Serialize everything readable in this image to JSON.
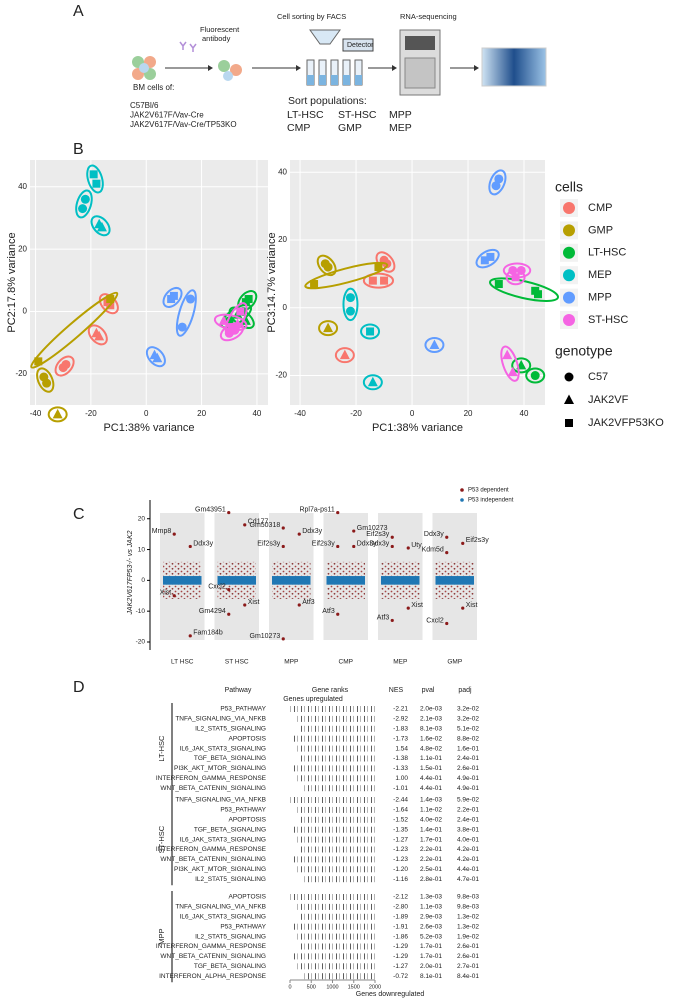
{
  "panel_labels": [
    "A",
    "B",
    "C",
    "D"
  ],
  "workflow": {
    "antibody_label": [
      "Fluorescent",
      "antibody"
    ],
    "sorting": "Cell sorting by FACS",
    "detector": "Detector",
    "sequencing": "RNA-sequencing",
    "bm_title": "BM cells of:",
    "genotypes": [
      "C57Bl/6",
      "JAK2V617F/Vav-Cre",
      "JAK2V617F/Vav-Cre/TP53KO"
    ],
    "sort_title": "Sort populations:",
    "populations": [
      "LT-HSC",
      "ST-HSC",
      "MPP",
      "CMP",
      "GMP",
      "MEP"
    ]
  },
  "chart_data": [
    {
      "type": "scatter",
      "xlabel": "PC1:38% variance",
      "ylabel": "PC2:17.8% variance",
      "xlim": [
        -42,
        44
      ],
      "ylim": [
        -30,
        48.6
      ],
      "xticks": [
        -40,
        -20,
        0,
        20,
        40
      ],
      "yticks": [
        -20,
        0,
        20,
        40
      ],
      "grid": true,
      "series": [
        {
          "color": "#F8766D",
          "x": [
            -30,
            -29,
            -18,
            -17,
            -14,
            -13
          ],
          "y": [
            -18,
            -17,
            -7,
            -8,
            3,
            2
          ],
          "genotype": [
            "C57",
            "C57",
            "JAK2VF",
            "JAK2VF",
            "JAK2VFP53KO",
            "JAK2VFP53KO"
          ]
        },
        {
          "color": "#B79F00",
          "x": [
            -37,
            -36,
            -32,
            -39,
            -13
          ],
          "y": [
            -21,
            -23,
            -33,
            -16,
            4
          ],
          "genotype": [
            "C57",
            "C57",
            "JAK2VF",
            "JAK2VFP53KO",
            "JAK2VFP53KO"
          ]
        },
        {
          "color": "#00BA38",
          "x": [
            30,
            35,
            33,
            36,
            36,
            37
          ],
          "y": [
            -3,
            0,
            -1,
            -3,
            3,
            4
          ],
          "genotype": [
            "C57",
            "C57",
            "JAK2VF",
            "JAK2VF",
            "JAK2VFP53KO",
            "JAK2VFP53KO"
          ]
        },
        {
          "color": "#00BFC4",
          "x": [
            -23,
            -22,
            -19,
            -18,
            -17,
            -16
          ],
          "y": [
            33,
            36,
            44,
            41,
            28,
            27
          ],
          "genotype": [
            "C57",
            "C57",
            "JAK2VFP53KO",
            "JAK2VFP53KO",
            "JAK2VF",
            "JAK2VF"
          ]
        },
        {
          "color": "#619CFF",
          "x": [
            13,
            16,
            9,
            10,
            3,
            4
          ],
          "y": [
            -5,
            4,
            4,
            5,
            -14,
            -15
          ],
          "genotype": [
            "C57",
            "C57",
            "JAK2VFP53KO",
            "JAK2VFP53KO",
            "JAK2VF",
            "JAK2VF"
          ]
        },
        {
          "color": "#F564E3",
          "x": [
            30,
            32,
            28,
            33,
            34,
            31
          ],
          "y": [
            -7,
            -6,
            -3,
            -4,
            0,
            -5
          ],
          "genotype": [
            "C57",
            "C57",
            "JAK2VF",
            "JAK2VF",
            "JAK2VFP53KO",
            "JAK2VFP53KO"
          ]
        }
      ]
    },
    {
      "type": "scatter",
      "xlabel": "PC1:38% variance",
      "ylabel": "PC3:14.7% variance",
      "xlim": [
        -43.6,
        47.5
      ],
      "ylim": [
        -28.7,
        43.6
      ],
      "xticks": [
        -40,
        -20,
        0,
        20,
        40
      ],
      "yticks": [
        -20,
        0,
        20,
        40
      ],
      "grid": true,
      "legend_title": "cells",
      "shape_title": "genotype",
      "shapes": [
        "C57",
        "JAK2VF",
        "JAK2VFP53KO"
      ],
      "series": [
        {
          "name": "CMP",
          "color": "#F8766D",
          "x": [
            -9,
            -10,
            -14,
            -10,
            -24
          ],
          "y": [
            13,
            14,
            8,
            8,
            -14
          ],
          "genotype": [
            "C57",
            "C57",
            "JAK2VFP53KO",
            "JAK2VFP53KO",
            "JAK2VF"
          ]
        },
        {
          "name": "GMP",
          "color": "#B79F00",
          "x": [
            -30,
            -31,
            -35,
            -12,
            -30
          ],
          "y": [
            12,
            13,
            7,
            12,
            -6
          ],
          "genotype": [
            "C57",
            "C57",
            "JAK2VFP53KO",
            "JAK2VFP53KO",
            "JAK2VF"
          ]
        },
        {
          "name": "LT-HSC",
          "color": "#00BA38",
          "x": [
            44,
            45,
            31,
            39,
            44
          ],
          "y": [
            5,
            4,
            7,
            -17,
            -20
          ],
          "genotype": [
            "JAK2VFP53KO",
            "JAK2VFP53KO",
            "JAK2VFP53KO",
            "JAK2VF",
            "C57"
          ]
        },
        {
          "name": "MEP",
          "color": "#00BFC4",
          "x": [
            -22,
            -22,
            -15,
            -14
          ],
          "y": [
            3,
            -1,
            -7,
            -22
          ],
          "genotype": [
            "C57",
            "C57",
            "JAK2VFP53KO",
            "JAK2VF"
          ]
        },
        {
          "name": "MPP",
          "color": "#619CFF",
          "x": [
            31,
            30,
            28,
            26,
            8
          ],
          "y": [
            38,
            36,
            15,
            14,
            -11
          ],
          "genotype": [
            "C57",
            "C57",
            "JAK2VFP53KO",
            "JAK2VFP53KO",
            "JAK2VF"
          ]
        },
        {
          "name": "ST-HSC",
          "color": "#F564E3",
          "x": [
            36,
            39,
            37,
            34,
            36
          ],
          "y": [
            11,
            11,
            9,
            -14,
            -19
          ],
          "genotype": [
            "C57",
            "C57",
            "JAK2VFP53KO",
            "JAK2VF",
            "JAK2VF"
          ]
        }
      ]
    },
    {
      "type": "strip",
      "ylabel": "JAK2V617FP53-/- vs JAK2",
      "ylim": [
        -22.6,
        27.7
      ],
      "yticks": [
        20,
        10,
        0,
        -10,
        -20
      ],
      "categories": [
        "LT HSC",
        "ST HSC",
        "MPP",
        "CMP",
        "MEP",
        "GMP"
      ],
      "series": [
        {
          "name": "P53 dependent",
          "color": "#8B1A1A"
        },
        {
          "name": "P53 independent",
          "color": "#1F77B4"
        }
      ],
      "annotations": [
        {
          "category": "LT HSC",
          "label": "Mmp8",
          "value": 15
        },
        {
          "category": "LT HSC",
          "label": "Ddx3y",
          "value": 11
        },
        {
          "category": "LT HSC",
          "label": "Xist",
          "value": -5
        },
        {
          "category": "LT HSC",
          "label": "Fam184b",
          "value": -18
        },
        {
          "category": "ST HSC",
          "label": "Gm43951",
          "value": 22
        },
        {
          "category": "ST HSC",
          "label": "Cd177",
          "value": 18
        },
        {
          "category": "ST HSC",
          "label": "Cxcl2",
          "value": -3
        },
        {
          "category": "ST HSC",
          "label": "Xist",
          "value": -8
        },
        {
          "category": "ST HSC",
          "label": "Gm4294",
          "value": -11
        },
        {
          "category": "MPP",
          "label": "Gm50318",
          "value": 17
        },
        {
          "category": "MPP",
          "label": "Ddx3y",
          "value": 15
        },
        {
          "category": "MPP",
          "label": "Eif2s3y",
          "value": 11
        },
        {
          "category": "MPP",
          "label": "Atf3",
          "value": -8
        },
        {
          "category": "MPP",
          "label": "Gm10273",
          "value": -19
        },
        {
          "category": "CMP",
          "label": "Rpl7a-ps11",
          "value": 22
        },
        {
          "category": "CMP",
          "label": "Gm10273",
          "value": 16
        },
        {
          "category": "CMP",
          "label": "Eif2s3y",
          "value": 11
        },
        {
          "category": "CMP",
          "label": "Ddx3y",
          "value": 11
        },
        {
          "category": "CMP",
          "label": "Atf3",
          "value": -11
        },
        {
          "category": "MEP",
          "label": "Eif2s3y",
          "value": 14
        },
        {
          "category": "MEP",
          "label": "Uty",
          "value": 10.5
        },
        {
          "category": "MEP",
          "label": "Ddx3y",
          "value": 11
        },
        {
          "category": "MEP",
          "label": "Xist",
          "value": -9
        },
        {
          "category": "MEP",
          "label": "Atf3",
          "value": -13
        },
        {
          "category": "GMP",
          "label": "Ddx3y",
          "value": 14
        },
        {
          "category": "GMP",
          "label": "Eif2s3y",
          "value": 12
        },
        {
          "category": "GMP",
          "label": "Kdm5d",
          "value": 9
        },
        {
          "category": "GMP",
          "label": "Xist",
          "value": -9
        },
        {
          "category": "GMP",
          "label": "Cxcl2",
          "value": -14
        }
      ]
    }
  ],
  "gsea": {
    "headers": [
      "Pathway",
      "Gene ranks",
      "NES",
      "pval",
      "padj"
    ],
    "up_label": "Genes upregulated",
    "down_label": "Genes downregulated",
    "rank_lim": [
      0,
      2000
    ],
    "rank_ticks": [
      0,
      500,
      1000,
      1500,
      2000
    ],
    "groups": [
      {
        "name": "LT-HSC",
        "rows": [
          [
            "P53_PATHWAY",
            "-2.21",
            "2.0e-03",
            "3.2e-02"
          ],
          [
            "TNFA_SIGNALING_VIA_NFKB",
            "-2.92",
            "2.1e-03",
            "3.2e-02"
          ],
          [
            "IL2_STAT5_SIGNALING",
            "-1.83",
            "8.1e-03",
            "5.1e-02"
          ],
          [
            "APOPTOSIS",
            "-1.73",
            "1.6e-02",
            "8.8e-02"
          ],
          [
            "IL6_JAK_STAT3_SIGNALING",
            "1.54",
            "4.8e-02",
            "1.6e-01"
          ],
          [
            "TGF_BETA_SIGNALING",
            "-1.38",
            "1.1e-01",
            "2.4e-01"
          ],
          [
            "PI3K_AKT_MTOR_SIGNALING",
            "-1.33",
            "1.5e-01",
            "2.6e-01"
          ],
          [
            "INTERFERON_GAMMA_RESPONSE",
            "1.00",
            "4.4e-01",
            "4.9e-01"
          ],
          [
            "WNT_BETA_CATENIN_SIGNALING",
            "-1.01",
            "4.4e-01",
            "4.9e-01"
          ]
        ]
      },
      {
        "name": "ST-HSC",
        "rows": [
          [
            "TNFA_SIGNALING_VIA_NFKB",
            "-2.44",
            "1.4e-03",
            "5.9e-02"
          ],
          [
            "P53_PATHWAY",
            "-1.64",
            "1.1e-02",
            "2.2e-01"
          ],
          [
            "APOPTOSIS",
            "-1.52",
            "4.0e-02",
            "2.4e-01"
          ],
          [
            "TGF_BETA_SIGNALING",
            "-1.35",
            "1.4e-01",
            "3.8e-01"
          ],
          [
            "IL6_JAK_STAT3_SIGNALING",
            "-1.27",
            "1.7e-01",
            "4.0e-01"
          ],
          [
            "INTERFERON_GAMMA_RESPONSE",
            "-1.23",
            "2.2e-01",
            "4.2e-01"
          ],
          [
            "WNT_BETA_CATENIN_SIGNALING",
            "-1.23",
            "2.2e-01",
            "4.2e-01"
          ],
          [
            "PI3K_AKT_MTOR_SIGNALING",
            "-1.20",
            "2.5e-01",
            "4.4e-01"
          ],
          [
            "IL2_STAT5_SIGNALING",
            "-1.16",
            "2.8e-01",
            "4.7e-01"
          ]
        ]
      },
      {
        "name": "MPP",
        "rows": [
          [
            "APOPTOSIS",
            "-2.12",
            "1.3e-03",
            "9.8e-03"
          ],
          [
            "TNFA_SIGNALING_VIA_NFKB",
            "-2.80",
            "1.1e-03",
            "9.8e-03"
          ],
          [
            "IL6_JAK_STAT3_SIGNALING",
            "-1.89",
            "2.9e-03",
            "1.3e-02"
          ],
          [
            "P53_PATHWAY",
            "-1.91",
            "2.6e-03",
            "1.3e-02"
          ],
          [
            "IL2_STAT5_SIGNALING",
            "-1.86",
            "5.2e-03",
            "1.9e-02"
          ],
          [
            "INTERFERON_GAMMA_RESPONSE",
            "-1.29",
            "1.7e-01",
            "2.6e-01"
          ],
          [
            "WNT_BETA_CATENIN_SIGNALING",
            "-1.29",
            "1.7e-01",
            "2.6e-01"
          ],
          [
            "TGF_BETA_SIGNALING",
            "-1.27",
            "2.0e-01",
            "2.7e-01"
          ],
          [
            "INTERFERON_ALPHA_RESPONSE",
            "-0.72",
            "8.1e-01",
            "8.4e-01"
          ]
        ]
      }
    ]
  }
}
